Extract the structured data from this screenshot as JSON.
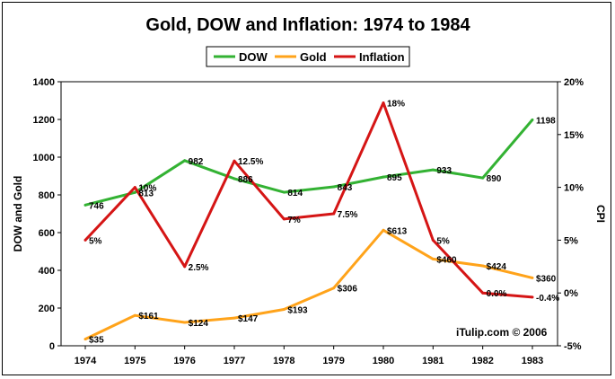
{
  "chart_data": {
    "type": "line",
    "title": "Gold, DOW and Inflation: 1974 to 1984",
    "categories": [
      "1974",
      "1975",
      "1976",
      "1977",
      "1978",
      "1979",
      "1980",
      "1981",
      "1982",
      "1983"
    ],
    "ylabel": "DOW and Gold",
    "y2label": "CPI",
    "ylim": [
      0,
      1400
    ],
    "y2lim": [
      -5,
      20
    ],
    "yticks": [
      "0",
      "200",
      "400",
      "600",
      "800",
      "1000",
      "1200",
      "1400"
    ],
    "y2ticks": [
      "-5%",
      "0%",
      "5%",
      "10%",
      "15%",
      "20%"
    ],
    "grid": false,
    "legend_position": "top-center",
    "credit": "iTulip.com © 2006",
    "series": [
      {
        "name": "DOW",
        "axis": "left",
        "color": "#33b233",
        "values": [
          746,
          813,
          982,
          886,
          814,
          843,
          895,
          933,
          890,
          1198
        ],
        "labels": [
          "746",
          "813",
          "982",
          "886",
          "814",
          "843",
          "895",
          "933",
          "890",
          "1198"
        ]
      },
      {
        "name": "Gold",
        "axis": "left",
        "color": "#ffa31a",
        "values": [
          35,
          161,
          124,
          147,
          193,
          306,
          613,
          460,
          424,
          360
        ],
        "labels": [
          "$35",
          "$161",
          "$124",
          "$147",
          "$193",
          "$306",
          "$613",
          "$460",
          "$424",
          "$360"
        ]
      },
      {
        "name": "Inflation",
        "axis": "right",
        "color": "#d51515",
        "values": [
          5,
          10,
          2.5,
          12.5,
          7,
          7.5,
          18,
          5,
          0,
          -0.4
        ],
        "labels": [
          "5%",
          "10%",
          "2.5%",
          "12.5%",
          "7%",
          "7.5%",
          "18%",
          "5%",
          "0.0%",
          "-0.4%"
        ]
      }
    ]
  }
}
